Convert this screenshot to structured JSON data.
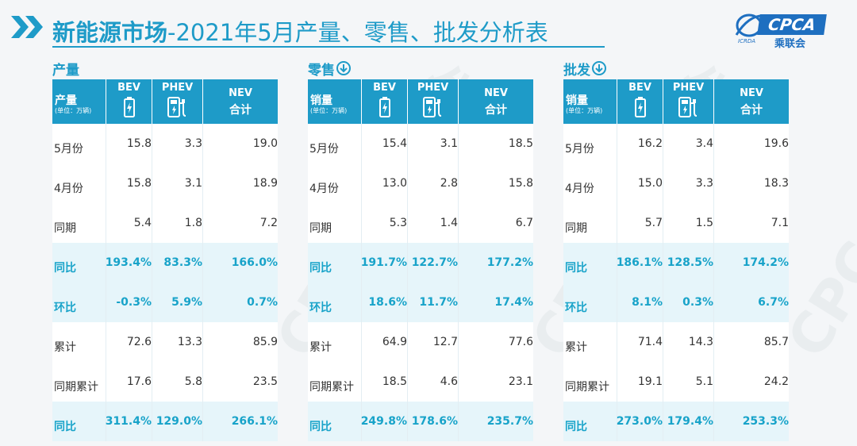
{
  "header": {
    "title_bold": "新能源市场",
    "title_rest": "-2021年5月产量、零售、批发分析表"
  },
  "logo": {
    "text": "CPCA",
    "sub": "乘联会",
    "mini": "ICRDA"
  },
  "watermark": "CPCA乘联会",
  "columns": {
    "bev": "BEV",
    "phev": "PHEV",
    "nev": "NEV",
    "nev_sub": "合计",
    "unit": "(单位：万辆)"
  },
  "panels": [
    {
      "caption": "产量",
      "head_label": "产量",
      "rows": [
        {
          "label": "5月份",
          "bev": "15.8",
          "phev": "3.3",
          "nev": "19.0",
          "hl": false
        },
        {
          "label": "4月份",
          "bev": "15.8",
          "phev": "3.1",
          "nev": "18.9",
          "hl": false
        },
        {
          "label": "同期",
          "bev": "5.4",
          "phev": "1.8",
          "nev": "7.2",
          "hl": false
        },
        {
          "label": "同比",
          "bev": "193.4%",
          "phev": "83.3%",
          "nev": "166.0%",
          "hl": true
        },
        {
          "label": "环比",
          "bev": "-0.3%",
          "phev": "5.9%",
          "nev": "0.7%",
          "hl": true
        },
        {
          "label": "累计",
          "bev": "72.6",
          "phev": "13.3",
          "nev": "85.9",
          "hl": false
        },
        {
          "label": "同期累计",
          "bev": "17.6",
          "phev": "5.8",
          "nev": "23.5",
          "hl": false
        },
        {
          "label": "同比",
          "bev": "311.4%",
          "phev": "129.0%",
          "nev": "266.1%",
          "hl": true
        }
      ]
    },
    {
      "caption": "零售",
      "head_label": "销量",
      "rows": [
        {
          "label": "5月份",
          "bev": "15.4",
          "phev": "3.1",
          "nev": "18.5",
          "hl": false
        },
        {
          "label": "4月份",
          "bev": "13.0",
          "phev": "2.8",
          "nev": "15.8",
          "hl": false
        },
        {
          "label": "同期",
          "bev": "5.3",
          "phev": "1.4",
          "nev": "6.7",
          "hl": false
        },
        {
          "label": "同比",
          "bev": "191.7%",
          "phev": "122.7%",
          "nev": "177.2%",
          "hl": true
        },
        {
          "label": "环比",
          "bev": "18.6%",
          "phev": "11.7%",
          "nev": "17.4%",
          "hl": true
        },
        {
          "label": "累计",
          "bev": "64.9",
          "phev": "12.7",
          "nev": "77.6",
          "hl": false
        },
        {
          "label": "同期累计",
          "bev": "18.5",
          "phev": "4.6",
          "nev": "23.1",
          "hl": false
        },
        {
          "label": "同比",
          "bev": "249.8%",
          "phev": "178.6%",
          "nev": "235.7%",
          "hl": true
        }
      ]
    },
    {
      "caption": "批发",
      "head_label": "销量",
      "rows": [
        {
          "label": "5月份",
          "bev": "16.2",
          "phev": "3.4",
          "nev": "19.6",
          "hl": false
        },
        {
          "label": "4月份",
          "bev": "15.0",
          "phev": "3.3",
          "nev": "18.3",
          "hl": false
        },
        {
          "label": "同期",
          "bev": "5.7",
          "phev": "1.5",
          "nev": "7.1",
          "hl": false
        },
        {
          "label": "同比",
          "bev": "186.1%",
          "phev": "128.5%",
          "nev": "174.2%",
          "hl": true
        },
        {
          "label": "环比",
          "bev": "8.1%",
          "phev": "0.3%",
          "nev": "6.7%",
          "hl": true
        },
        {
          "label": "累计",
          "bev": "71.4",
          "phev": "14.3",
          "nev": "85.7",
          "hl": false
        },
        {
          "label": "同期累计",
          "bev": "19.1",
          "phev": "5.1",
          "nev": "24.2",
          "hl": false
        },
        {
          "label": "同比",
          "bev": "273.0%",
          "phev": "179.4%",
          "nev": "253.3%",
          "hl": true
        }
      ]
    }
  ],
  "colors": {
    "accent": "#1e9bc8",
    "highlight_text": "#18a3c9",
    "highlight_bg": "#e6f5fa",
    "logo_blue": "#1e6fc0"
  }
}
